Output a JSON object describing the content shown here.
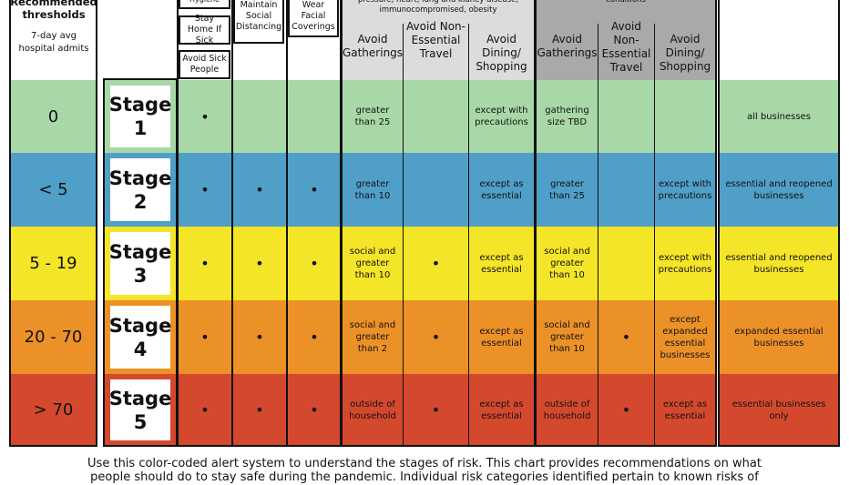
{
  "header": {
    "recommended_thresholds": "Recommended thresholds",
    "seven_day_avg": "7-day avg hospital admits",
    "hygiene": "Hygiene",
    "stay_home": "Stay Home If Sick",
    "avoid_sick": "Avoid Sick People",
    "maintain_distancing": "Maintain Social Distancing",
    "wear_coverings": "Wear Facial Coverings",
    "risk_group_1": "pressure, heart, lung and kidney disease, immunocompromised, obesity",
    "risk_group_2": "conditions",
    "avoid_gatherings": "Avoid Gatherings",
    "avoid_travel": "Avoid Non-Essential Travel",
    "avoid_dining": "Avoid Dining/ Shopping"
  },
  "rows": [
    {
      "threshold": "0",
      "stage_word": "Stage",
      "stage_num": "1",
      "c1": "•",
      "c2": "",
      "c3": "",
      "c4": "greater than 25",
      "c5": "",
      "c6": "except with precautions",
      "c7": "gathering size TBD",
      "c8": "",
      "c9": "",
      "c10": "all businesses"
    },
    {
      "threshold": "< 5",
      "stage_word": "Stage",
      "stage_num": "2",
      "c1": "•",
      "c2": "•",
      "c3": "•",
      "c4": "greater than 10",
      "c5": "",
      "c6": "except as essential",
      "c7": "greater than 25",
      "c8": "",
      "c9": "except with precautions",
      "c10": "essential and reopened businesses"
    },
    {
      "threshold": "5 - 19",
      "stage_word": "Stage",
      "stage_num": "3",
      "c1": "•",
      "c2": "•",
      "c3": "•",
      "c4": "social and greater than 10",
      "c5": "•",
      "c6": "except as essential",
      "c7": "social and greater than 10",
      "c8": "",
      "c9": "except with precautions",
      "c10": "essential and reopened businesses"
    },
    {
      "threshold": "20 - 70",
      "stage_word": "Stage",
      "stage_num": "4",
      "c1": "•",
      "c2": "•",
      "c3": "•",
      "c4": "social and greater than 2",
      "c5": "•",
      "c6": "except as essential",
      "c7": "social and greater than 10",
      "c8": "•",
      "c9": "except expanded essential businesses",
      "c10": "expanded essential businesses"
    },
    {
      "threshold": "> 70",
      "stage_word": "Stage",
      "stage_num": "5",
      "c1": "•",
      "c2": "•",
      "c3": "•",
      "c4": "outside of household",
      "c5": "•",
      "c6": "except as essential",
      "c7": "outside of household",
      "c8": "•",
      "c9": "except as essential",
      "c10": "essential businesses only"
    }
  ],
  "colors": {
    "stage1": "#a8d8a8",
    "stage2": "#4f9fc8",
    "stage3": "#f4e528",
    "stage4": "#ec9128",
    "stage5": "#d4492e",
    "header_gray1": "#dcdcdc",
    "header_gray2": "#a9a9a9"
  },
  "caption": {
    "line1": "Use this color-coded alert system to understand the stages of risk. This chart provides recommendations on what",
    "line2": "people should do to stay safe during the pandemic. Individual risk categories identified pertain to known risks of"
  }
}
